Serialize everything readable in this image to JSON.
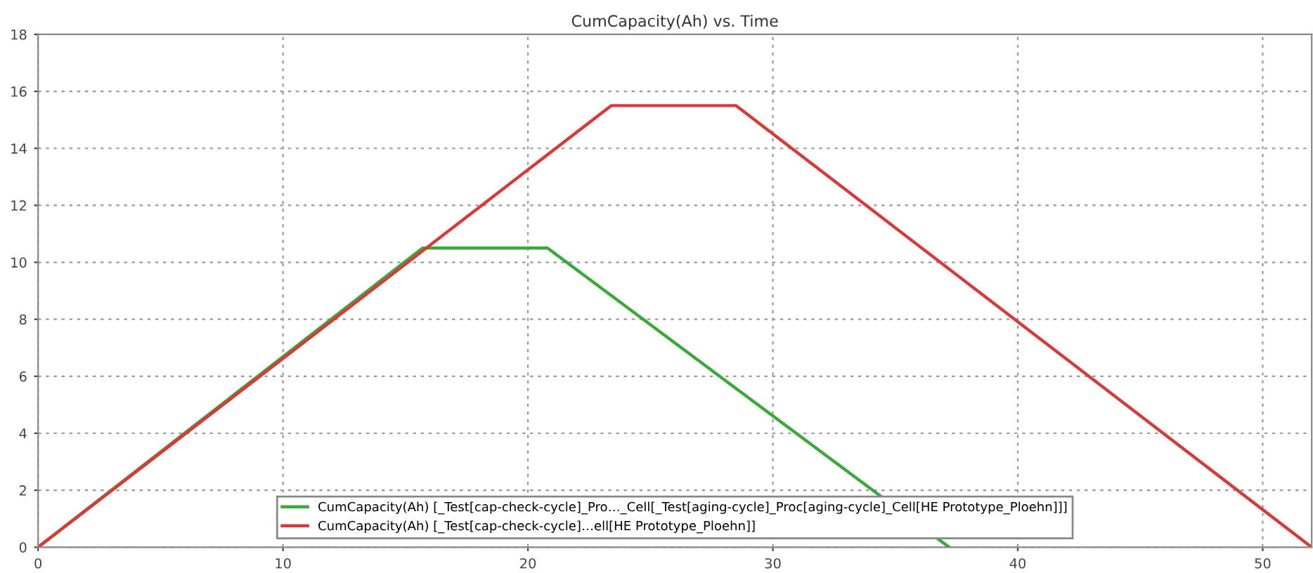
{
  "chart_data": {
    "type": "line",
    "title": "CumCapacity(Ah) vs. Time",
    "series": [
      {
        "name": "CumCapacity(Ah) [_Test[cap-check-cycle]_Pro…_Cell[_Test[aging-cycle]_Proc[aging-cycle]_Cell[HE Prototype_Ploehn]]]",
        "color": "#3aa83a",
        "x": [
          0,
          15.7,
          20.8,
          37.2
        ],
        "values": [
          0,
          10.5,
          10.5,
          0
        ]
      },
      {
        "name": "CumCapacity(Ah) [_Test[cap-check-cycle]…ell[HE Prototype_Ploehn]]",
        "color": "#d83a3a",
        "x": [
          0,
          23.4,
          28.5,
          52
        ],
        "values": [
          0,
          15.5,
          15.5,
          0
        ]
      }
    ],
    "xlim": [
      0,
      52
    ],
    "xticks": [
      0,
      10,
      20,
      30,
      40,
      50
    ],
    "ylim": [
      0,
      18
    ],
    "yticks": [
      0,
      2,
      4,
      6,
      8,
      10,
      12,
      14,
      16,
      18
    ],
    "grid": true,
    "legend": "bottom",
    "marker": "none",
    "line_style": "solid"
  }
}
